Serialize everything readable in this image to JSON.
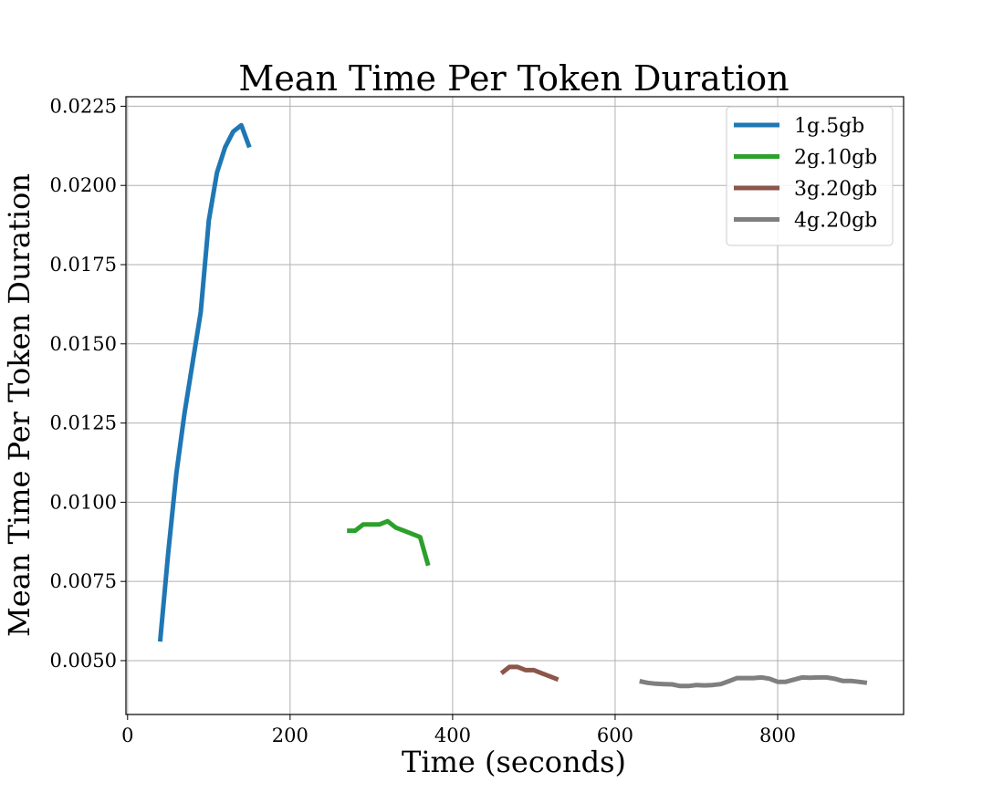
{
  "chart_data": {
    "type": "line",
    "title": "Mean Time Per Token Duration",
    "xlabel": "Time (seconds)",
    "ylabel": "Mean Time Per Token Duration",
    "xlim": [
      -2,
      955
    ],
    "ylim": [
      0.0033,
      0.0228
    ],
    "xticks": [
      0,
      200,
      400,
      600,
      800
    ],
    "xtick_labels": [
      "0",
      "200",
      "400",
      "600",
      "800"
    ],
    "yticks": [
      0.005,
      0.0075,
      0.01,
      0.0125,
      0.015,
      0.0175,
      0.02,
      0.0225
    ],
    "ytick_labels": [
      "0.0050",
      "0.0075",
      "0.0100",
      "0.0125",
      "0.0150",
      "0.0175",
      "0.0200",
      "0.0225"
    ],
    "grid": true,
    "legend_position": "top-right",
    "series": [
      {
        "name": "1g.5gb",
        "color": "#1f77b4",
        "x": [
          40,
          50,
          60,
          70,
          80,
          90,
          100,
          110,
          120,
          130,
          140,
          150
        ],
        "y": [
          0.0056,
          0.0084,
          0.0109,
          0.0128,
          0.0144,
          0.016,
          0.0189,
          0.0204,
          0.0212,
          0.0217,
          0.0219,
          0.0212
        ]
      },
      {
        "name": "2g.10gb",
        "color": "#2ca02c",
        "x": [
          270,
          280,
          290,
          300,
          310,
          320,
          330,
          340,
          350,
          360,
          370
        ],
        "y": [
          0.0091,
          0.0091,
          0.0093,
          0.0093,
          0.0093,
          0.0094,
          0.0092,
          0.0091,
          0.009,
          0.0089,
          0.008
        ]
      },
      {
        "name": "3g.20gb",
        "color": "#8c564b",
        "x": [
          460,
          470,
          480,
          490,
          500,
          510,
          520,
          530
        ],
        "y": [
          0.0046,
          0.0048,
          0.0048,
          0.0047,
          0.0047,
          0.0046,
          0.0045,
          0.0044
        ]
      },
      {
        "name": "4g.20gb",
        "color": "#7f7f7f",
        "x": [
          630,
          640,
          650,
          660,
          670,
          680,
          690,
          700,
          710,
          720,
          730,
          740,
          750,
          760,
          770,
          780,
          790,
          800,
          810,
          820,
          830,
          840,
          850,
          860,
          870,
          880,
          890,
          900,
          910
        ],
        "y": [
          0.00435,
          0.0043,
          0.00427,
          0.00426,
          0.00425,
          0.0042,
          0.0042,
          0.00423,
          0.00422,
          0.00423,
          0.00426,
          0.00435,
          0.00445,
          0.00445,
          0.00445,
          0.00447,
          0.00443,
          0.00433,
          0.00433,
          0.0044,
          0.00447,
          0.00446,
          0.00447,
          0.00447,
          0.00443,
          0.00436,
          0.00436,
          0.00433,
          0.0043
        ]
      }
    ]
  }
}
